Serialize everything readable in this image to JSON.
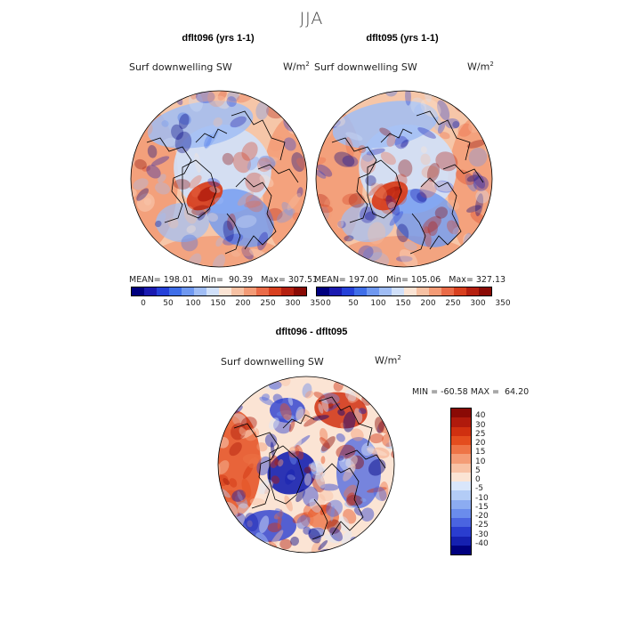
{
  "title": "JJA",
  "colors": {
    "abs_scale": [
      "#00007f",
      "#1a1ab0",
      "#2540d8",
      "#3f6ee8",
      "#6f98f0",
      "#a0bdf5",
      "#d0e0fa",
      "#fbe4d4",
      "#f7c1a3",
      "#f39b76",
      "#ea6b48",
      "#d8401f",
      "#b52010",
      "#8a0a05"
    ],
    "diff_scale": [
      "#8a0a05",
      "#b01a0c",
      "#d03010",
      "#e44d1e",
      "#ee7446",
      "#f49c76",
      "#f8c2a5",
      "#fbe4d4",
      "#d9e6fb",
      "#b3ccf6",
      "#8cacf1",
      "#6a8cec",
      "#4a64e0",
      "#2a3dcf",
      "#1520b0",
      "#00007f"
    ]
  },
  "chart_data": [
    {
      "type": "heatmap",
      "projection": "north-polar-stereographic",
      "title": "dflt096 (yrs 1-1)",
      "variable": "Surf downwelling SW",
      "units": "W/m²",
      "mean": "198.01",
      "min": "90.39",
      "max": "307.51",
      "stats_text": "MEAN= 198.01   Min=  90.39   Max= 307.51",
      "colorbar_ticks": [
        "0",
        "50",
        "100",
        "150",
        "200",
        "250",
        "300",
        "350"
      ]
    },
    {
      "type": "heatmap",
      "projection": "north-polar-stereographic",
      "title": "dflt095 (yrs 1-1)",
      "variable": "Surf downwelling SW",
      "units": "W/m²",
      "mean": "197.00",
      "min": "105.06",
      "max": "327.13",
      "stats_text": "MEAN= 197.00   Min= 105.06   Max= 327.13",
      "colorbar_ticks": [
        "0",
        "50",
        "100",
        "150",
        "200",
        "250",
        "300",
        "350"
      ]
    },
    {
      "type": "heatmap",
      "projection": "north-polar-stereographic",
      "title": "dflt096 - dflt095",
      "variable": "Surf downwelling SW",
      "units": "W/m²",
      "min": "-60.58",
      "max": "64.20",
      "stats_text": "MIN = -60.58 MAX =  64.20",
      "colorbar_ticks": [
        "40",
        "30",
        "25",
        "20",
        "15",
        "10",
        "5",
        "0",
        "-5",
        "-10",
        "-15",
        "-20",
        "-25",
        "-30",
        "-40"
      ]
    }
  ]
}
